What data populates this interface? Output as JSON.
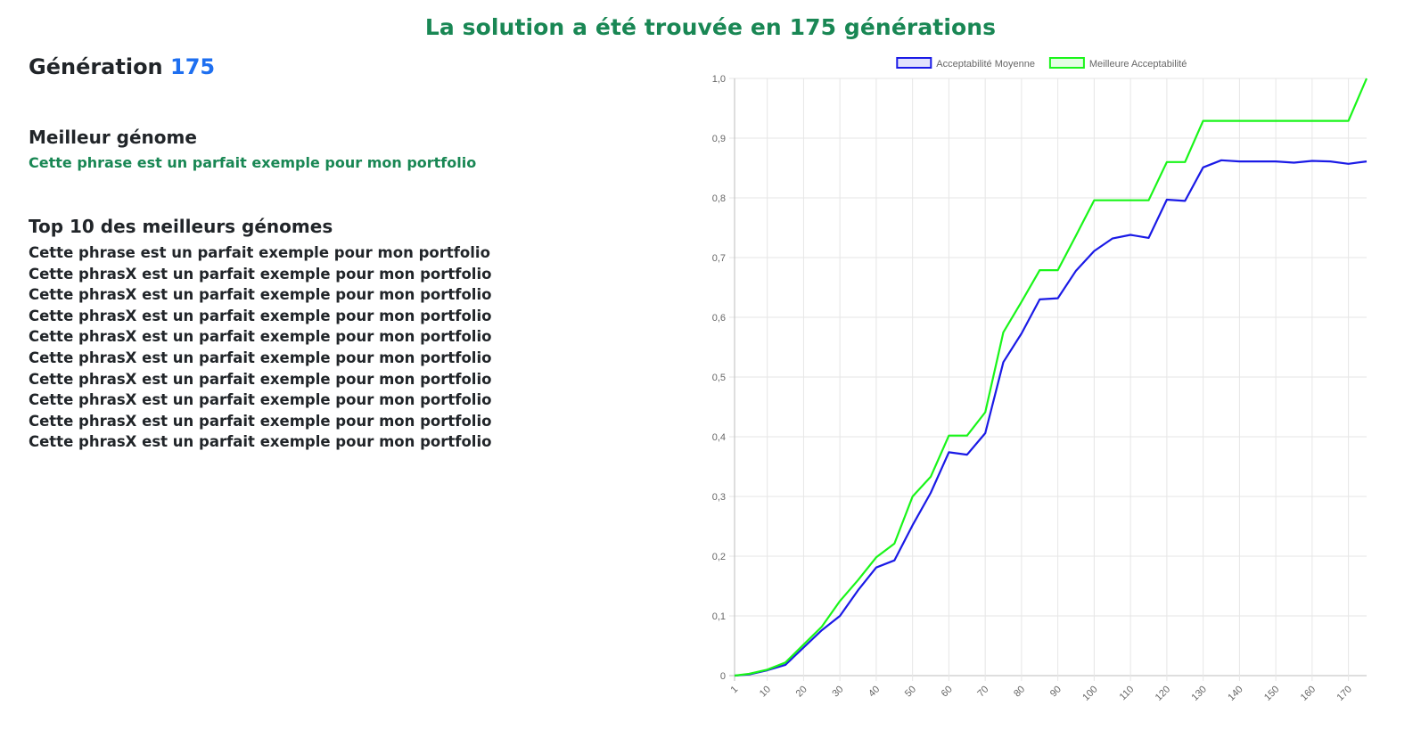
{
  "banner": "La solution a été trouvée en 175 générations",
  "generation": {
    "label": "Génération",
    "value": "175"
  },
  "best": {
    "heading": "Meilleur génome",
    "text": "Cette phrase est un parfait exemple pour mon portfolio"
  },
  "top10": {
    "heading": "Top 10 des meilleurs génomes",
    "items": [
      "Cette phrase est un parfait exemple pour mon portfolio",
      "Cette phrasX est un parfait exemple pour mon portfolio",
      "Cette phrasX est un parfait exemple pour mon portfolio",
      "Cette phrasX est un parfait exemple pour mon portfolio",
      "Cette phrasX est un parfait exemple pour mon portfolio",
      "Cette phrasX est un parfait exemple pour mon portfolio",
      "Cette phrasX est un parfait exemple pour mon portfolio",
      "Cette phrasX est un parfait exemple pour mon portfolio",
      "Cette phrasX est un parfait exemple pour mon portfolio",
      "Cette phrasX est un parfait exemple pour mon portfolio"
    ]
  },
  "colors": {
    "banner": "#198754",
    "generation_number": "#1e6ff0",
    "average_line": "#1a1ae6",
    "best_line": "#19f519"
  },
  "chart_data": {
    "type": "line",
    "legend_position": "top",
    "grid": true,
    "x": [
      1,
      5,
      10,
      15,
      20,
      25,
      30,
      35,
      40,
      45,
      50,
      55,
      60,
      65,
      70,
      75,
      80,
      85,
      90,
      95,
      100,
      105,
      110,
      115,
      120,
      125,
      130,
      135,
      140,
      145,
      150,
      155,
      160,
      165,
      170,
      175
    ],
    "x_ticks": [
      "1",
      "10",
      "20",
      "30",
      "40",
      "50",
      "60",
      "70",
      "80",
      "90",
      "100",
      "110",
      "120",
      "130",
      "140",
      "150",
      "160",
      "170"
    ],
    "y_ticks": [
      "0",
      "0,1",
      "0,2",
      "0,3",
      "0,4",
      "0,5",
      "0,6",
      "0,7",
      "0,8",
      "0,9",
      "1,0"
    ],
    "ylim": [
      0,
      1
    ],
    "series": [
      {
        "name": "Acceptabilité Moyenne",
        "color": "#1a1ae6",
        "values": [
          0.0,
          0.002,
          0.009,
          0.018,
          0.047,
          0.076,
          0.1,
          0.143,
          0.181,
          0.193,
          0.252,
          0.306,
          0.374,
          0.37,
          0.406,
          0.525,
          0.573,
          0.63,
          0.632,
          0.678,
          0.711,
          0.732,
          0.738,
          0.733,
          0.797,
          0.795,
          0.851,
          0.863,
          0.861,
          0.861,
          0.861,
          0.859,
          0.862,
          0.861,
          0.857,
          0.861
        ]
      },
      {
        "name": "Meilleure Acceptabilité",
        "color": "#19f519",
        "values": [
          0.0,
          0.003,
          0.01,
          0.022,
          0.052,
          0.082,
          0.125,
          0.16,
          0.198,
          0.221,
          0.3,
          0.333,
          0.402,
          0.402,
          0.441,
          0.575,
          0.626,
          0.679,
          0.679,
          0.737,
          0.796,
          0.796,
          0.796,
          0.796,
          0.86,
          0.86,
          0.929,
          0.929,
          0.929,
          0.929,
          0.929,
          0.929,
          0.929,
          0.929,
          0.929,
          1.0
        ]
      }
    ]
  }
}
